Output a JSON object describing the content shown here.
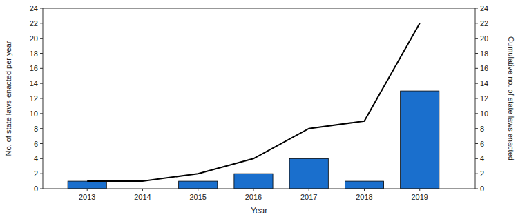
{
  "chart_data": {
    "type": "bar",
    "x": [
      2013,
      2014,
      2015,
      2016,
      2017,
      2018,
      2019
    ],
    "xlim": [
      2012.2,
      2020.0
    ],
    "xticks": [
      2013,
      2014,
      2015,
      2016,
      2017,
      2018,
      2019
    ],
    "ylim": [
      0,
      24
    ],
    "yticks": [
      0,
      2,
      4,
      6,
      8,
      10,
      12,
      14,
      16,
      18,
      20,
      22,
      24
    ],
    "y2lim": [
      0,
      24
    ],
    "y2ticks": [
      0,
      2,
      4,
      6,
      8,
      10,
      12,
      14,
      16,
      18,
      20,
      22,
      24
    ],
    "x_label": "Year",
    "y_label": "No. of state laws enacted per year",
    "y2_label": "Cumulative no. of state laws enacted",
    "grid": false,
    "series": [
      {
        "type": "bar",
        "color": "#1a6fcd",
        "values": [
          1,
          0,
          1,
          2,
          4,
          1,
          13
        ]
      },
      {
        "type": "line",
        "color": "#000000",
        "axis": "y2",
        "values": [
          1,
          1,
          2,
          4,
          8,
          9,
          22
        ]
      }
    ]
  }
}
